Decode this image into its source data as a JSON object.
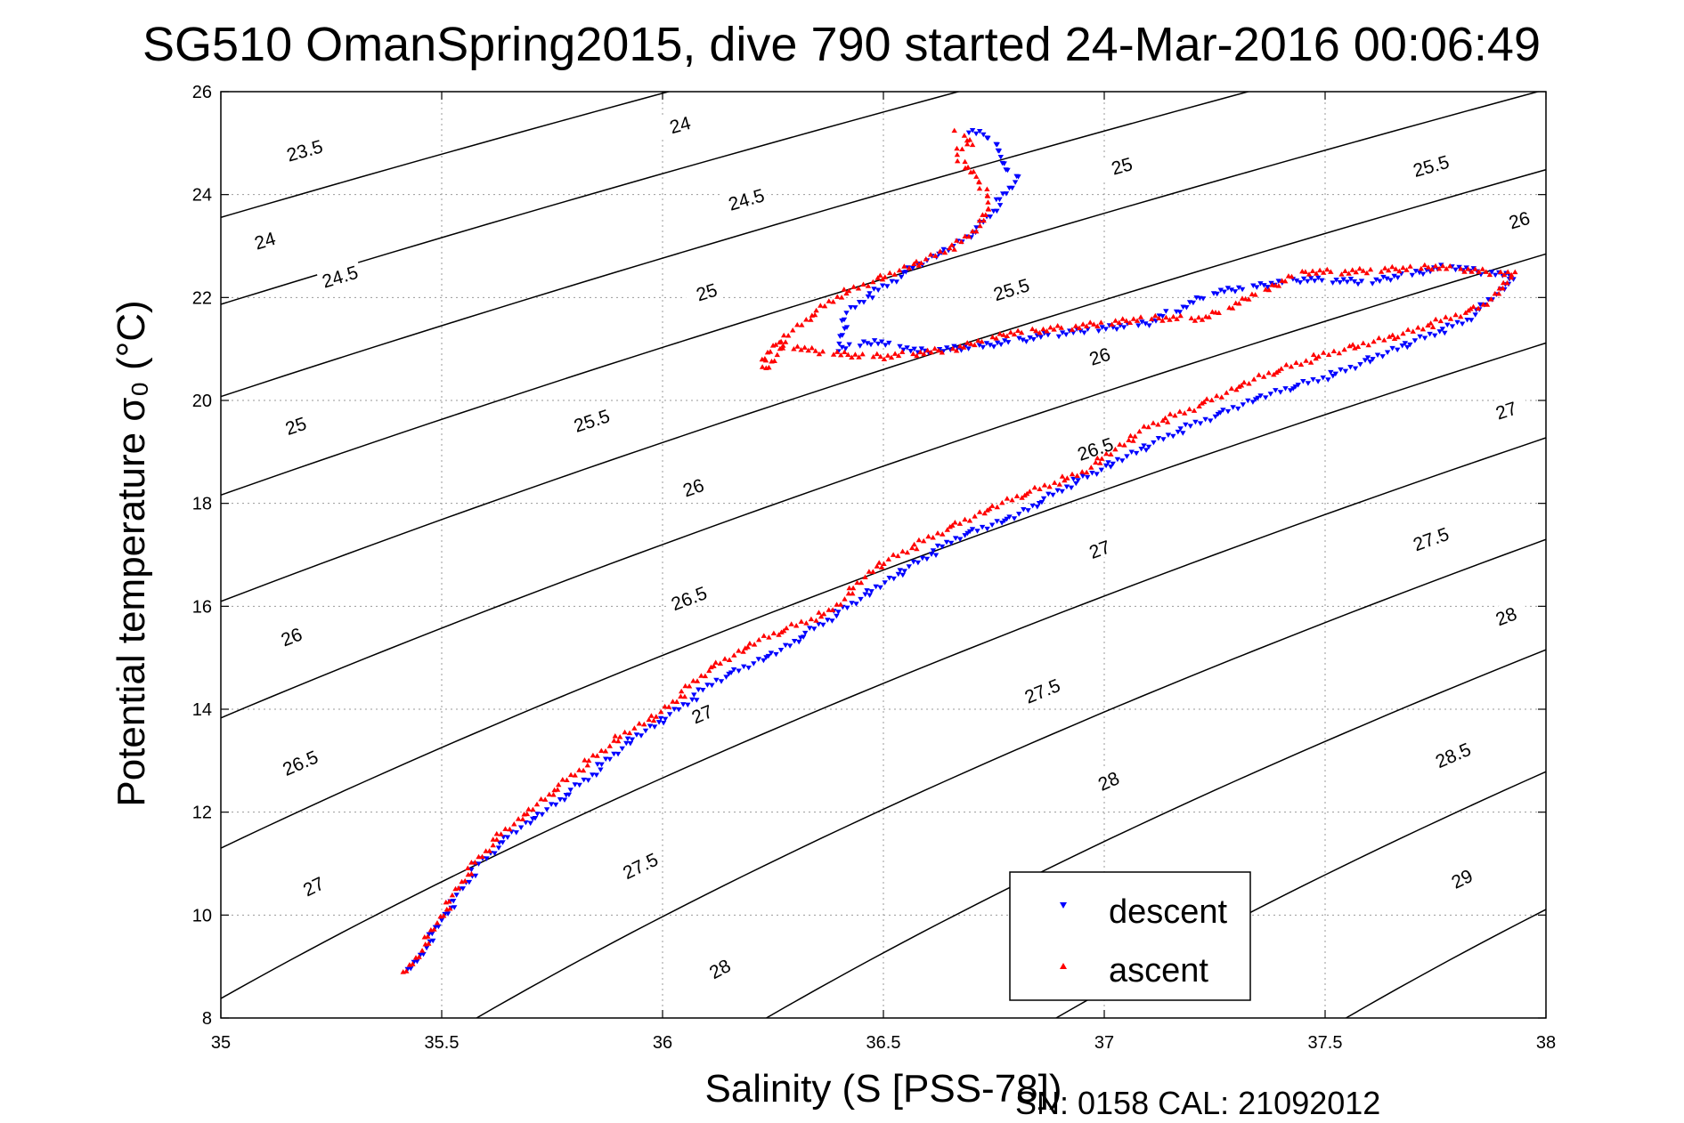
{
  "chart_data": {
    "type": "scatter",
    "title": "SG510 OmanSpring2015, dive 790 started 24-Mar-2016 00:06:49",
    "xlabel": "Salinity (S [PSS-78])",
    "ylabel": "Potential temperature σ₀ (°C)",
    "xlim": [
      35,
      38
    ],
    "ylim": [
      8,
      26
    ],
    "xticks": [
      35,
      35.5,
      36,
      36.5,
      37,
      37.5,
      38
    ],
    "yticks": [
      8,
      10,
      12,
      14,
      16,
      18,
      20,
      22,
      24,
      26
    ],
    "xtick_labels": [
      "35",
      "35.5",
      "36",
      "36.5",
      "37",
      "37.5",
      "38"
    ],
    "ytick_labels": [
      "8",
      "10",
      "12",
      "14",
      "16",
      "18",
      "20",
      "22",
      "24",
      "26"
    ],
    "grid": true,
    "legend_position": "bottom-right",
    "footer": "SN: 0158  CAL: 21092012",
    "contours": [
      {
        "level": 23.5,
        "label": "23.5"
      },
      {
        "level": 24,
        "label": "24"
      },
      {
        "level": 24.5,
        "label": "24.5"
      },
      {
        "level": 25,
        "label": "25"
      },
      {
        "level": 25.5,
        "label": "25.5"
      },
      {
        "level": 26,
        "label": "26"
      },
      {
        "level": 26.5,
        "label": "26.5"
      },
      {
        "level": 27,
        "label": "27"
      },
      {
        "level": 27.5,
        "label": "27.5"
      },
      {
        "level": 28,
        "label": "28"
      },
      {
        "level": 28.5,
        "label": "28.5"
      },
      {
        "level": 29,
        "label": "29"
      },
      {
        "level": 29.5,
        "label": ""
      }
    ],
    "contour_labels": [
      {
        "text": "23.5",
        "x": 35.19,
        "y": 24.85
      },
      {
        "text": "24",
        "x": 35.1,
        "y": 23.1
      },
      {
        "text": "24.5",
        "x": 35.27,
        "y": 22.4
      },
      {
        "text": "25",
        "x": 35.17,
        "y": 19.5
      },
      {
        "text": "25.5",
        "x": 35.84,
        "y": 19.6
      },
      {
        "text": "26",
        "x": 35.16,
        "y": 15.4
      },
      {
        "text": "26.5",
        "x": 35.18,
        "y": 12.95
      },
      {
        "text": "27",
        "x": 35.21,
        "y": 10.55
      },
      {
        "text": "24",
        "x": 36.04,
        "y": 25.35
      },
      {
        "text": "24.5",
        "x": 36.19,
        "y": 23.9
      },
      {
        "text": "25",
        "x": 36.1,
        "y": 22.1
      },
      {
        "text": "26",
        "x": 36.07,
        "y": 18.3
      },
      {
        "text": "26.5",
        "x": 36.06,
        "y": 16.15
      },
      {
        "text": "27",
        "x": 36.09,
        "y": 13.9
      },
      {
        "text": "27.5",
        "x": 35.95,
        "y": 10.95
      },
      {
        "text": "28",
        "x": 36.13,
        "y": 8.95
      },
      {
        "text": "25",
        "x": 37.04,
        "y": 24.55
      },
      {
        "text": "25.5",
        "x": 36.79,
        "y": 22.15
      },
      {
        "text": "26",
        "x": 36.99,
        "y": 20.85
      },
      {
        "text": "26.5",
        "x": 36.98,
        "y": 19.05
      },
      {
        "text": "27",
        "x": 36.99,
        "y": 17.1
      },
      {
        "text": "27.5",
        "x": 36.86,
        "y": 14.35
      },
      {
        "text": "28",
        "x": 37.01,
        "y": 12.6
      },
      {
        "text": "25.5",
        "x": 37.74,
        "y": 24.55
      },
      {
        "text": "26",
        "x": 37.94,
        "y": 23.5
      },
      {
        "text": "27",
        "x": 37.91,
        "y": 19.8
      },
      {
        "text": "27.5",
        "x": 37.74,
        "y": 17.3
      },
      {
        "text": "28",
        "x": 37.91,
        "y": 15.8
      },
      {
        "text": "28.5",
        "x": 37.79,
        "y": 13.1
      },
      {
        "text": "29",
        "x": 37.81,
        "y": 10.7
      }
    ],
    "series": [
      {
        "name": "descent",
        "color": "#0000ff",
        "marker": "triangle-down",
        "path": [
          [
            35.43,
            8.9
          ],
          [
            35.5,
            9.9
          ],
          [
            35.58,
            10.95
          ],
          [
            35.66,
            11.6
          ],
          [
            35.74,
            12.05
          ],
          [
            35.83,
            12.65
          ],
          [
            35.92,
            13.35
          ],
          [
            36.02,
            13.9
          ],
          [
            36.12,
            14.55
          ],
          [
            36.27,
            15.15
          ],
          [
            36.42,
            16.0
          ],
          [
            36.52,
            16.55
          ],
          [
            36.67,
            17.35
          ],
          [
            36.8,
            17.75
          ],
          [
            36.92,
            18.35
          ],
          [
            37.06,
            18.95
          ],
          [
            37.18,
            19.45
          ],
          [
            37.35,
            20.05
          ],
          [
            37.52,
            20.5
          ],
          [
            37.66,
            21.0
          ],
          [
            37.82,
            21.55
          ],
          [
            37.93,
            22.4
          ],
          [
            37.78,
            22.6
          ],
          [
            37.6,
            22.3
          ],
          [
            37.45,
            22.35
          ],
          [
            37.25,
            22.1
          ],
          [
            37.1,
            21.5
          ],
          [
            36.9,
            21.3
          ],
          [
            36.72,
            21.05
          ],
          [
            36.58,
            20.95
          ],
          [
            36.48,
            21.15
          ],
          [
            36.4,
            21.0
          ],
          [
            36.4,
            21.2
          ],
          [
            36.42,
            21.7
          ],
          [
            36.46,
            22.0
          ],
          [
            36.5,
            22.2
          ],
          [
            36.57,
            22.6
          ],
          [
            36.66,
            23.0
          ],
          [
            36.71,
            23.3
          ],
          [
            36.74,
            23.6
          ],
          [
            36.78,
            24.05
          ],
          [
            36.8,
            24.3
          ],
          [
            36.76,
            24.8
          ],
          [
            36.74,
            25.15
          ],
          [
            36.68,
            25.25
          ]
        ]
      },
      {
        "name": "ascent",
        "color": "#ff0000",
        "marker": "triangle-up",
        "path": [
          [
            35.42,
            8.85
          ],
          [
            35.49,
            9.85
          ],
          [
            35.56,
            10.85
          ],
          [
            35.63,
            11.55
          ],
          [
            35.71,
            12.1
          ],
          [
            35.8,
            12.75
          ],
          [
            35.9,
            13.45
          ],
          [
            36.0,
            13.95
          ],
          [
            36.1,
            14.75
          ],
          [
            36.22,
            15.35
          ],
          [
            36.38,
            15.9
          ],
          [
            36.48,
            16.75
          ],
          [
            36.63,
            17.45
          ],
          [
            36.78,
            18.05
          ],
          [
            36.95,
            18.6
          ],
          [
            37.1,
            19.5
          ],
          [
            37.2,
            19.85
          ],
          [
            37.35,
            20.45
          ],
          [
            37.5,
            20.9
          ],
          [
            37.68,
            21.3
          ],
          [
            37.86,
            21.85
          ],
          [
            37.93,
            22.45
          ],
          [
            37.75,
            22.6
          ],
          [
            37.55,
            22.5
          ],
          [
            37.45,
            22.5
          ],
          [
            37.23,
            21.6
          ],
          [
            37.1,
            21.6
          ],
          [
            36.95,
            21.45
          ],
          [
            36.78,
            21.3
          ],
          [
            36.66,
            21.0
          ],
          [
            36.5,
            20.85
          ],
          [
            36.4,
            20.9
          ],
          [
            36.32,
            21.0
          ],
          [
            36.26,
            21.1
          ],
          [
            36.22,
            20.8
          ],
          [
            36.24,
            20.6
          ],
          [
            36.28,
            21.25
          ],
          [
            36.33,
            21.6
          ],
          [
            36.4,
            22.05
          ],
          [
            36.5,
            22.4
          ],
          [
            36.6,
            22.75
          ],
          [
            36.68,
            23.1
          ],
          [
            36.72,
            23.45
          ],
          [
            36.74,
            23.7
          ],
          [
            36.73,
            24.0
          ],
          [
            36.72,
            24.3
          ],
          [
            36.68,
            24.55
          ],
          [
            36.67,
            24.85
          ],
          [
            36.7,
            25.0
          ],
          [
            36.66,
            25.25
          ]
        ]
      }
    ],
    "legend": [
      {
        "label": "descent",
        "color": "#0000ff",
        "marker": "triangle-down"
      },
      {
        "label": "ascent",
        "color": "#ff0000",
        "marker": "triangle-up"
      }
    ]
  }
}
